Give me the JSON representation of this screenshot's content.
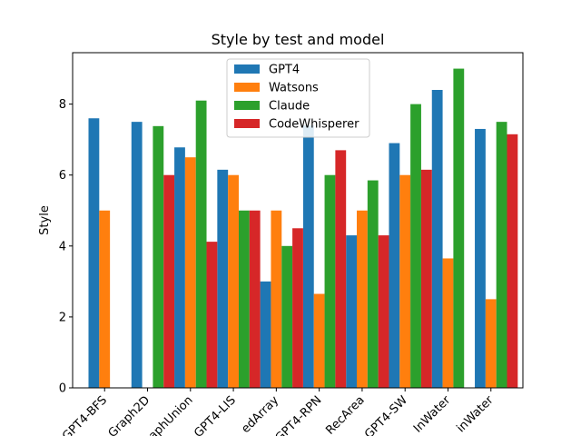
{
  "chart_data": {
    "type": "bar",
    "title": "Style by test and model",
    "xlabel": "",
    "ylabel": "Style",
    "ylim": [
      0,
      9.45
    ],
    "yticks": [
      0,
      2,
      4,
      6,
      8
    ],
    "categories": [
      "GPT4-BFS",
      "Graph2D",
      "GraphUnion",
      "GPT4-LIS",
      "SortedArray",
      "GPT4-RPN",
      "RecArea",
      "GPT4-SW",
      "InWater",
      "RainWater"
    ],
    "category_labels": [
      "GPT4-BFS",
      "Graph2D",
      "aphUnion",
      "GPT4-LIS",
      "edArray",
      "GPT4-RPN",
      "RecArea",
      "GPT4-SW",
      "InWater",
      "inWater"
    ],
    "series": [
      {
        "name": "GPT4",
        "color": "#1f77b4",
        "values": [
          7.6,
          7.5,
          6.78,
          6.15,
          3.0,
          7.4,
          4.3,
          6.9,
          8.4,
          7.3
        ]
      },
      {
        "name": "Watsons",
        "color": "#ff7f0e",
        "values": [
          5.0,
          0,
          6.5,
          6.0,
          5.0,
          2.65,
          5.0,
          6.0,
          3.65,
          2.5
        ]
      },
      {
        "name": "Claude",
        "color": "#2ca02c",
        "values": [
          0,
          7.38,
          8.1,
          5.0,
          4.0,
          6.0,
          5.85,
          8.0,
          9.0,
          7.5
        ]
      },
      {
        "name": "CodeWhisperer",
        "color": "#d62728",
        "values": [
          0,
          6.0,
          4.12,
          5.0,
          4.5,
          6.7,
          4.3,
          6.15,
          0,
          7.15
        ]
      }
    ],
    "legend": "top-center",
    "grid": false
  }
}
